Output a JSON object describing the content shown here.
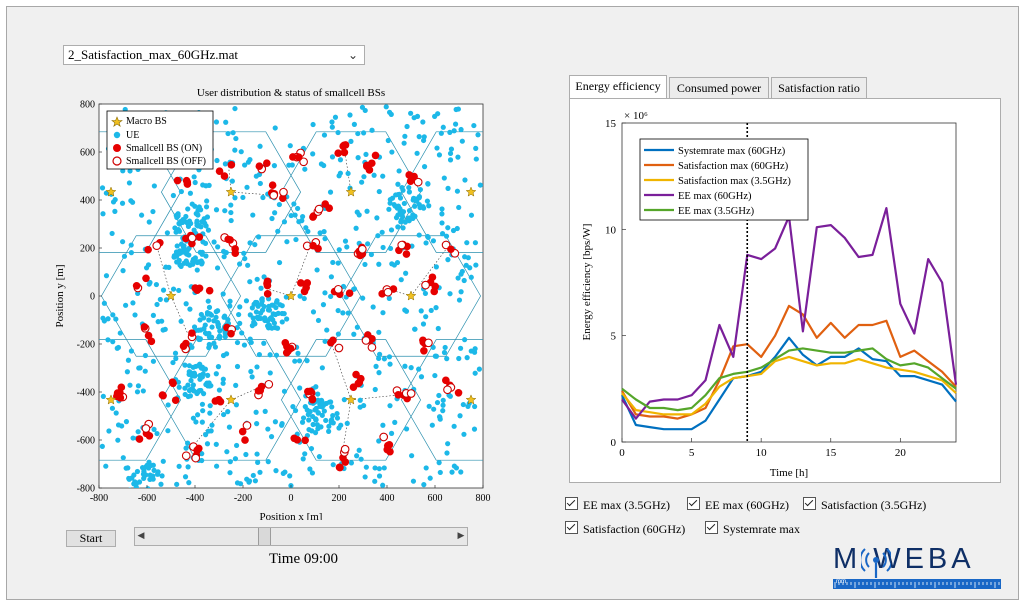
{
  "dropdown": {
    "value": "2_Satisfaction_max_60GHz.mat"
  },
  "controls": {
    "start_label": "Start",
    "time_label": "Time  09:00",
    "slider_fraction": 0.375
  },
  "tabs": [
    {
      "label": "Energy efficiency",
      "active": true
    },
    {
      "label": "Consumed power",
      "active": false
    },
    {
      "label": "Satisfaction ratio",
      "active": false
    }
  ],
  "checkboxes": [
    {
      "label": "EE max (3.5GHz)",
      "checked": true
    },
    {
      "label": "EE max (60GHz)",
      "checked": true
    },
    {
      "label": "Satisfaction (3.5GHz)",
      "checked": true
    },
    {
      "label": "Satisfaction (60GHz)",
      "checked": true
    },
    {
      "label": "Systemrate max",
      "checked": true
    }
  ],
  "logo": {
    "text": "M WEBA",
    "ruler_text": "mm"
  },
  "colors": {
    "ue": "#1cb8e8",
    "bs_on": "#e60000",
    "bs_off": "#cc0000",
    "macro": "#f0c020",
    "hex": "#2a8fae",
    "systemrate": "#0070c0",
    "sat60": "#e06010",
    "sat35": "#f0b400",
    "ee60": "#7a1f9a",
    "ee35": "#55a62a"
  },
  "chart_data": [
    {
      "type": "scatter",
      "title": "User distribution & status of smallcell BSs",
      "xlabel": "Position x [m]",
      "ylabel": "Position y [m]",
      "xlim": [
        -800,
        800
      ],
      "ylim": [
        -800,
        800
      ],
      "xticks": [
        -800,
        -600,
        -400,
        -200,
        0,
        200,
        400,
        600,
        800
      ],
      "yticks": [
        -800,
        -600,
        -400,
        -200,
        0,
        200,
        400,
        600,
        800
      ],
      "legend": [
        "Macro BS",
        "UE",
        "Smallcell BS (ON)",
        "Smallcell BS (OFF)"
      ],
      "macro_bs": [
        [
          0,
          0
        ],
        [
          -500,
          0
        ],
        [
          500,
          0
        ],
        [
          -250,
          433
        ],
        [
          250,
          433
        ],
        [
          -250,
          -433
        ],
        [
          250,
          -433
        ],
        [
          -750,
          433
        ],
        [
          750,
          433
        ],
        [
          -750,
          -433
        ],
        [
          750,
          -433
        ]
      ],
      "smallcell_clusters": [
        [
          -260,
          540
        ],
        [
          -120,
          530
        ],
        [
          40,
          600
        ],
        [
          220,
          630
        ],
        [
          350,
          560
        ],
        [
          -450,
          470
        ],
        [
          -70,
          420
        ],
        [
          120,
          350
        ],
        [
          510,
          470
        ],
        [
          -560,
          210
        ],
        [
          -410,
          220
        ],
        [
          -240,
          220
        ],
        [
          80,
          210
        ],
        [
          280,
          190
        ],
        [
          470,
          210
        ],
        [
          650,
          200
        ],
        [
          -610,
          40
        ],
        [
          -380,
          40
        ],
        [
          -100,
          30
        ],
        [
          60,
          20
        ],
        [
          200,
          10
        ],
        [
          400,
          30
        ],
        [
          590,
          40
        ],
        [
          -600,
          -150
        ],
        [
          -420,
          -180
        ],
        [
          -250,
          -140
        ],
        [
          0,
          -230
        ],
        [
          170,
          -200
        ],
        [
          330,
          -180
        ],
        [
          560,
          -190
        ],
        [
          -700,
          -400
        ],
        [
          -500,
          -400
        ],
        [
          -320,
          -440
        ],
        [
          -130,
          -380
        ],
        [
          80,
          -410
        ],
        [
          280,
          -360
        ],
        [
          470,
          -410
        ],
        [
          670,
          -380
        ],
        [
          -620,
          -560
        ],
        [
          -420,
          -640
        ],
        [
          -180,
          -560
        ],
        [
          20,
          -600
        ],
        [
          210,
          -680
        ],
        [
          410,
          -620
        ]
      ],
      "ue_hotspots": [
        [
          -420,
          310
        ],
        [
          -330,
          -130
        ],
        [
          -400,
          -350
        ],
        [
          -420,
          180
        ],
        [
          480,
          380
        ],
        [
          120,
          -500
        ],
        [
          -610,
          -770
        ],
        [
          -100,
          -80
        ]
      ]
    },
    {
      "type": "line",
      "title": "",
      "xlabel": "Time [h]",
      "ylabel": "Energy efficiency [bps/W]",
      "exponent_label": "× 10⁶",
      "xlim": [
        0,
        24
      ],
      "ylim": [
        0,
        15
      ],
      "xticks": [
        0,
        5,
        10,
        15,
        20
      ],
      "yticks": [
        0,
        5,
        10,
        15
      ],
      "current_time": 9,
      "x": [
        0,
        1,
        2,
        3,
        4,
        5,
        6,
        7,
        8,
        9,
        10,
        11,
        12,
        13,
        14,
        15,
        16,
        17,
        18,
        19,
        20,
        21,
        22,
        23,
        24
      ],
      "series": [
        {
          "name": "Systemrate max (60GHz)",
          "color": "#0070c0",
          "values": [
            2.2,
            0.8,
            0.7,
            0.6,
            0.6,
            0.6,
            1.0,
            2.0,
            3.0,
            3.1,
            3.3,
            4.0,
            4.9,
            4.1,
            3.6,
            4.0,
            4.0,
            4.4,
            3.9,
            3.8,
            3.1,
            3.1,
            2.9,
            2.7,
            1.9
          ]
        },
        {
          "name": "Satisfaction max (60GHz)",
          "color": "#e06010",
          "values": [
            2.4,
            1.3,
            1.2,
            1.2,
            1.1,
            1.3,
            1.6,
            2.9,
            4.5,
            4.6,
            4.0,
            5.0,
            6.4,
            6.0,
            4.9,
            5.6,
            4.9,
            5.5,
            5.5,
            5.7,
            4.0,
            4.3,
            3.8,
            3.3,
            2.6
          ]
        },
        {
          "name": "Satisfaction max (3.5GHz)",
          "color": "#f0b400",
          "values": [
            2.3,
            1.5,
            1.4,
            1.3,
            1.3,
            1.3,
            1.8,
            2.6,
            3.0,
            3.1,
            3.2,
            3.8,
            4.0,
            3.8,
            3.6,
            3.7,
            3.7,
            3.9,
            3.7,
            3.5,
            3.4,
            3.3,
            3.1,
            2.9,
            2.3
          ]
        },
        {
          "name": "EE max (60GHz)",
          "color": "#7a1f9a",
          "values": [
            2.0,
            1.1,
            1.9,
            2.0,
            2.0,
            2.2,
            2.9,
            5.5,
            4.0,
            8.8,
            8.6,
            9.1,
            10.6,
            5.2,
            10.1,
            10.2,
            9.6,
            8.7,
            8.8,
            11.0,
            6.5,
            5.1,
            8.6,
            7.5,
            2.7
          ]
        },
        {
          "name": "EE max (3.5GHz)",
          "color": "#55a62a",
          "values": [
            2.5,
            2.0,
            1.6,
            1.6,
            1.5,
            1.6,
            2.2,
            3.0,
            3.2,
            3.3,
            3.5,
            3.9,
            4.3,
            4.4,
            4.3,
            4.2,
            4.2,
            4.3,
            4.4,
            3.9,
            3.6,
            3.7,
            3.5,
            3.0,
            2.5
          ]
        }
      ]
    }
  ]
}
